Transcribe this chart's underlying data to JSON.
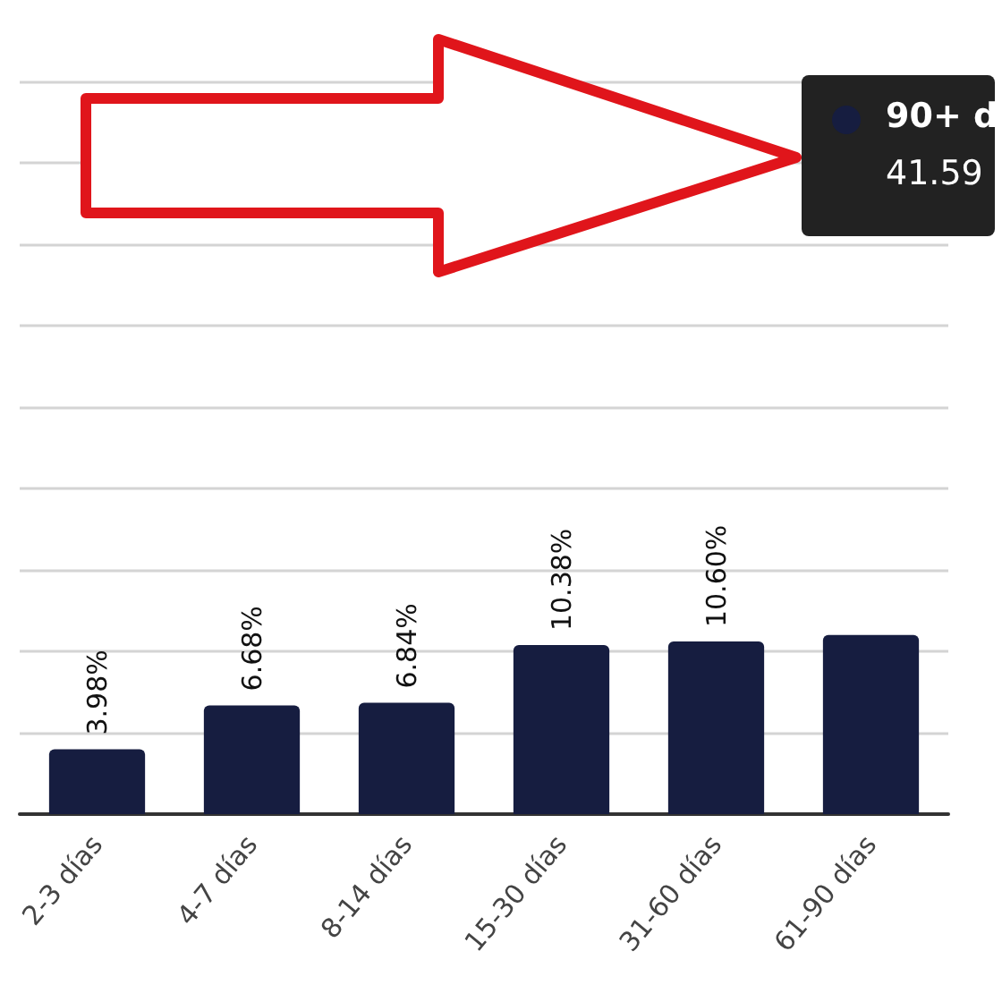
{
  "chart_data": {
    "type": "bar",
    "categories": [
      "2-3 días",
      "4-7 días",
      "8-14 días",
      "15-30 días",
      "31-60 días",
      "61-90 días"
    ],
    "values": [
      3.98,
      6.68,
      6.84,
      10.38,
      10.6,
      11.0
    ],
    "value_labels": [
      "3.98%",
      "6.68%",
      "6.84%",
      "10.38%",
      "10.60%",
      null
    ],
    "color": "#161d40",
    "ylim": [
      0,
      50
    ],
    "yticks": [
      {
        "value": 0,
        "label": null
      },
      {
        "value": 5,
        "label": null
      },
      {
        "value": 10,
        "label": null
      },
      {
        "value": 15,
        "label": null
      },
      {
        "value": 20,
        "label": null
      },
      {
        "value": 25,
        "label": null
      },
      {
        "value": 30,
        "label": null
      },
      {
        "value": 35,
        "label": null
      },
      {
        "value": 40,
        "label": null
      },
      {
        "value": 45,
        "label": null
      }
    ],
    "grid": "y",
    "annotations": [
      "90+ d",
      "41.59"
    ]
  }
}
